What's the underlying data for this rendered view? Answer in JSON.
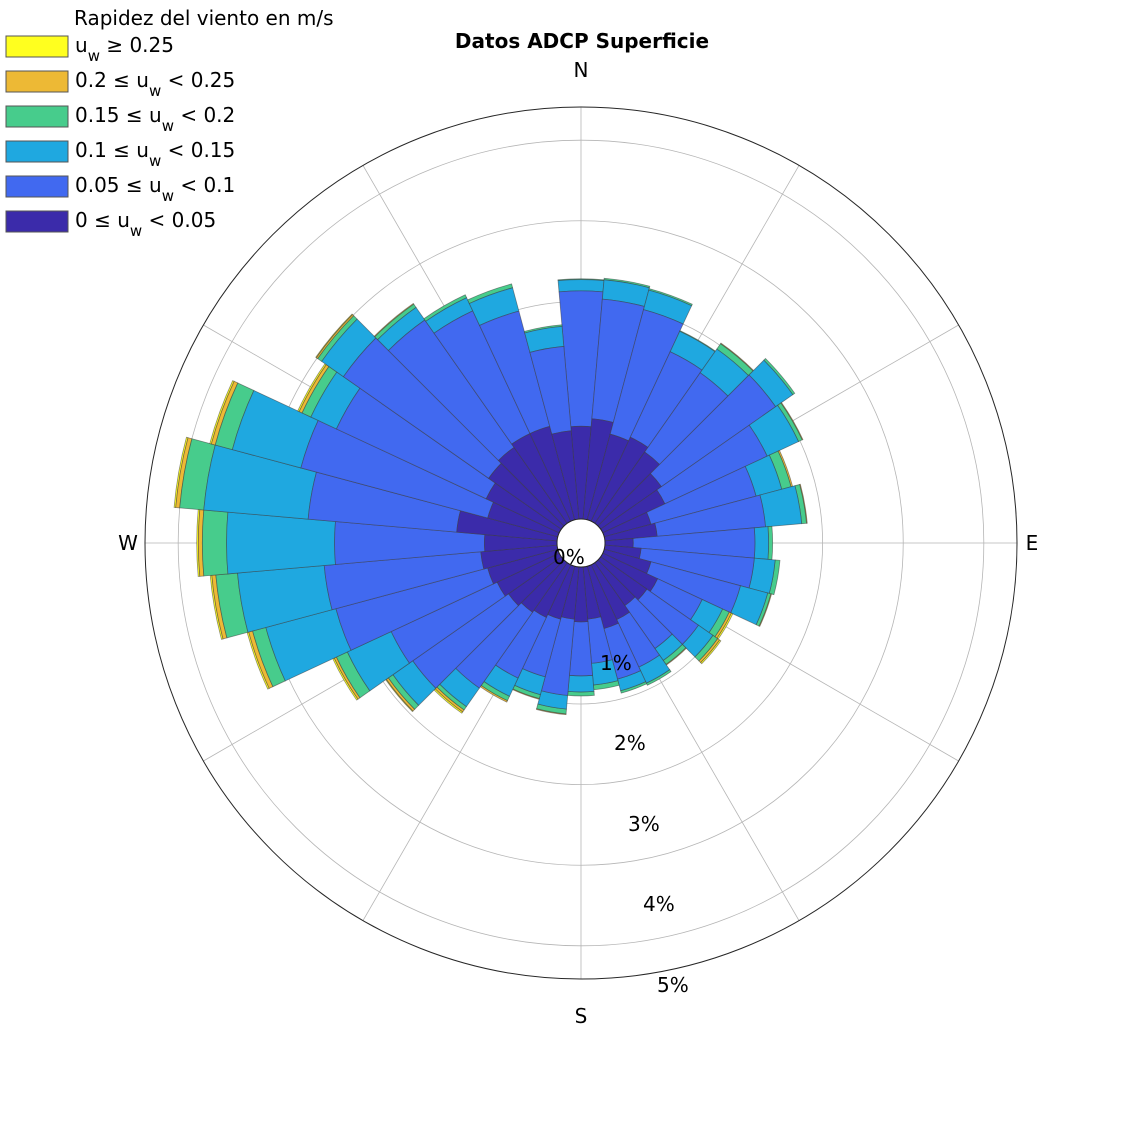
{
  "chart_data": {
    "type": "windrose",
    "title": "Datos ADCP Superficie",
    "legend_title": "Rapidez del viento en m/s",
    "legend_placement": "top-left",
    "bins": [
      {
        "label": "0 ≤ u_w < 0.05",
        "color": "#3B2BAA"
      },
      {
        "label": "0.05 ≤ u_w < 0.1",
        "color": "#4169F0"
      },
      {
        "label": "0.1 ≤ u_w < 0.15",
        "color": "#1FA8E0"
      },
      {
        "label": "0.15 ≤ u_w < 0.2",
        "color": "#47CC8C"
      },
      {
        "label": "0.2 ≤ u_w < 0.25",
        "color": "#EDB935"
      },
      {
        "label": "u_w ≥ 0.25",
        "color": "#FFFF1F"
      }
    ],
    "legend_text": [
      {
        "main": "u",
        "sub": "w",
        "rest": " ≥ 0.25"
      },
      {
        "pre": "0.2 ≤ ",
        "main": "u",
        "sub": "w",
        "rest": " < 0.25"
      },
      {
        "pre": "0.15 ≤ ",
        "main": "u",
        "sub": "w",
        "rest": " < 0.2"
      },
      {
        "pre": "0.1 ≤ ",
        "main": "u",
        "sub": "w",
        "rest": " < 0.15"
      },
      {
        "pre": "0.05 ≤ ",
        "main": "u",
        "sub": "w",
        "rest": " < 0.1"
      },
      {
        "pre": "0 ≤ ",
        "main": "u",
        "sub": "w",
        "rest": " < 0.05"
      }
    ],
    "directions": [
      "N",
      "E",
      "S",
      "W"
    ],
    "radial_ticks": [
      "0%",
      "1%",
      "2%",
      "3%",
      "4%",
      "5%"
    ],
    "radial_range": [
      0,
      5.4
    ],
    "center_offset_percent": 0.3,
    "sector_width_deg": 10,
    "sectors": [
      {
        "dir": 0,
        "cum": [
          1.45,
          3.13,
          3.27,
          3.28,
          3.28,
          3.28
        ]
      },
      {
        "dir": 10,
        "cum": [
          1.55,
          3.04,
          3.28,
          3.3,
          3.3,
          3.3
        ]
      },
      {
        "dir": 20,
        "cum": [
          1.4,
          3.0,
          3.25,
          3.27,
          3.27,
          3.27
        ]
      },
      {
        "dir": 30,
        "cum": [
          1.45,
          2.62,
          2.9,
          2.91,
          2.91,
          2.91
        ]
      },
      {
        "dir": 40,
        "cum": [
          1.38,
          2.58,
          2.94,
          3.02,
          3.03,
          3.03
        ]
      },
      {
        "dir": 50,
        "cum": [
          1.22,
          2.95,
          3.21,
          3.24,
          3.24,
          3.24
        ]
      },
      {
        "dir": 60,
        "cum": [
          1.15,
          2.55,
          2.98,
          3.03,
          3.04,
          3.04
        ]
      },
      {
        "dir": 70,
        "cum": [
          0.9,
          2.25,
          2.58,
          2.7,
          2.72,
          2.72
        ]
      },
      {
        "dir": 80,
        "cum": [
          0.95,
          2.3,
          2.75,
          2.81,
          2.82,
          2.82
        ]
      },
      {
        "dir": 90,
        "cum": [
          0.65,
          2.16,
          2.33,
          2.38,
          2.38,
          2.38
        ]
      },
      {
        "dir": 100,
        "cum": [
          0.75,
          2.16,
          2.42,
          2.48,
          2.48,
          2.48
        ]
      },
      {
        "dir": 110,
        "cum": [
          0.9,
          2.05,
          2.4,
          2.44,
          2.45,
          2.45
        ]
      },
      {
        "dir": 120,
        "cum": [
          1.05,
          1.66,
          1.94,
          2.03,
          2.06,
          2.08
        ]
      },
      {
        "dir": 130,
        "cum": [
          1.0,
          1.78,
          2.0,
          2.07,
          2.1,
          2.12
        ]
      },
      {
        "dir": 140,
        "cum": [
          0.95,
          1.6,
          1.78,
          1.84,
          1.85,
          1.85
        ]
      },
      {
        "dir": 150,
        "cum": [
          1.05,
          1.7,
          1.92,
          1.95,
          1.95,
          1.95
        ]
      },
      {
        "dir": 160,
        "cum": [
          1.1,
          1.75,
          1.9,
          1.93,
          1.93,
          1.93
        ]
      },
      {
        "dir": 170,
        "cum": [
          0.95,
          1.5,
          1.77,
          1.83,
          1.83,
          1.83
        ]
      },
      {
        "dir": 180,
        "cum": [
          0.98,
          1.65,
          1.85,
          1.9,
          1.9,
          1.9
        ]
      },
      {
        "dir": 190,
        "cum": [
          0.95,
          1.9,
          2.07,
          2.13,
          2.14,
          2.14
        ]
      },
      {
        "dir": 200,
        "cum": [
          0.98,
          1.72,
          1.95,
          2.0,
          2.01,
          2.01
        ]
      },
      {
        "dir": 210,
        "cum": [
          1.02,
          1.85,
          2.1,
          2.16,
          2.18,
          2.18
        ]
      },
      {
        "dir": 220,
        "cum": [
          1.05,
          2.2,
          2.48,
          2.53,
          2.56,
          2.58
        ]
      },
      {
        "dir": 230,
        "cum": [
          1.1,
          2.55,
          2.85,
          2.92,
          2.95,
          2.96
        ]
      },
      {
        "dir": 240,
        "cum": [
          1.15,
          2.6,
          3.2,
          3.35,
          3.38,
          3.4
        ]
      },
      {
        "dir": 250,
        "cum": [
          1.2,
          3.15,
          4.05,
          4.22,
          4.27,
          4.29
        ]
      },
      {
        "dir": 260,
        "cum": [
          1.25,
          3.2,
          4.28,
          4.55,
          4.6,
          4.62
        ]
      },
      {
        "dir": 270,
        "cum": [
          1.2,
          3.06,
          4.4,
          4.7,
          4.75,
          4.77
        ]
      },
      {
        "dir": 280,
        "cum": [
          1.55,
          3.4,
          4.7,
          5.0,
          5.05,
          5.07
        ]
      },
      {
        "dir": 290,
        "cum": [
          1.2,
          3.6,
          4.48,
          4.7,
          4.75,
          4.77
        ]
      },
      {
        "dir": 300,
        "cum": [
          1.3,
          3.35,
          3.7,
          3.82,
          3.86,
          3.88
        ]
      },
      {
        "dir": 310,
        "cum": [
          1.4,
          3.6,
          3.93,
          3.99,
          4.01,
          4.02
        ]
      },
      {
        "dir": 320,
        "cum": [
          1.45,
          3.38,
          3.57,
          3.62,
          3.63,
          3.63
        ]
      },
      {
        "dir": 330,
        "cum": [
          1.5,
          3.18,
          3.36,
          3.4,
          3.4,
          3.4
        ]
      },
      {
        "dir": 340,
        "cum": [
          1.5,
          2.98,
          3.28,
          3.33,
          3.33,
          3.33
        ]
      },
      {
        "dir": 350,
        "cum": [
          1.4,
          2.45,
          2.7,
          2.72,
          2.72,
          2.72
        ]
      }
    ]
  }
}
